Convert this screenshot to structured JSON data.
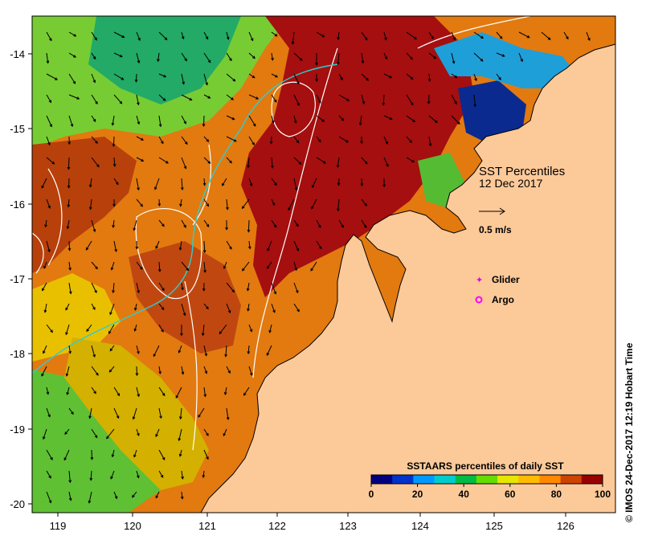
{
  "figure": {
    "title_lines": [
      "SST Percentiles",
      "12 Dec 2017"
    ],
    "vector_scale_label": "0.5 m/s",
    "credit": "© IMOS 24-Dec-2017 12:19 Hobart Time",
    "legend_items": [
      {
        "label": "Glider",
        "color": "#e000e0",
        "symbol": "star"
      },
      {
        "label": "Argo",
        "color": "#ff00ff",
        "symbol": "circle"
      }
    ]
  },
  "axes": {
    "lon_ticks": [
      "119",
      "120",
      "121",
      "122",
      "123",
      "124",
      "125",
      "126"
    ],
    "lat_ticks": [
      "-14",
      "-15",
      "-16",
      "-17",
      "-18",
      "-19",
      "-20"
    ],
    "lon_range": [
      118.62,
      126.75
    ],
    "lat_range": [
      -20.18,
      -13.5
    ]
  },
  "colorbar": {
    "title": "SSTAARS percentiles of daily SST",
    "tick_labels": [
      "0",
      "20",
      "40",
      "60",
      "80",
      "100"
    ],
    "colors": [
      "#00007f",
      "#0033cc",
      "#0099ff",
      "#00cccc",
      "#00bb44",
      "#66dd00",
      "#e6e600",
      "#ffbb00",
      "#ff8800",
      "#cc4400",
      "#990000"
    ]
  },
  "colors": {
    "land": "#fcc999",
    "coast": "#000000",
    "current_contours": "#ffffff",
    "cyan_contour": "#33cccc"
  }
}
